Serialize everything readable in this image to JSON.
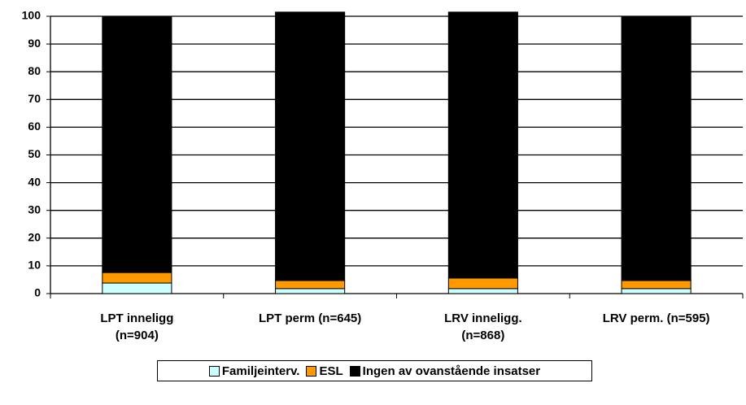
{
  "chart_data": {
    "type": "stacked_bar",
    "categories": [
      "LPT inneligg\n(n=904)",
      "LPT perm (n=645)",
      "LRV inneligg.\n(n=868)",
      "LRV perm. (n=595)"
    ],
    "series": [
      {
        "name": "Familjeinterv.",
        "color": "#ccffff",
        "values": [
          3.8,
          1.8,
          1.8,
          1.8
        ]
      },
      {
        "name": "ESL",
        "color": "#ff9900",
        "values": [
          3.8,
          2.9,
          3.8,
          2.9
        ]
      },
      {
        "name": "Ingen av ovanstående insatser",
        "color": "#000000",
        "values": [
          92.4,
          96.8,
          95.9,
          95.3
        ]
      }
    ],
    "ylim": [
      0,
      100
    ],
    "yticks": [
      0,
      10,
      20,
      30,
      40,
      50,
      60,
      70,
      80,
      90,
      100
    ],
    "grid": true
  }
}
